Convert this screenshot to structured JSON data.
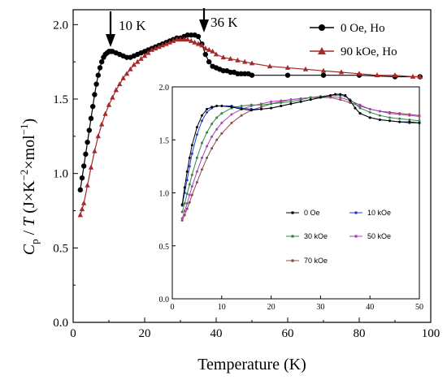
{
  "chart_data": [
    {
      "type": "line",
      "xlabel": "Temperature (K)",
      "ylabel": "C_p / T (J×K^-2×mol^-1)",
      "xlim": [
        0,
        100
      ],
      "ylim": [
        0.0,
        2.1
      ],
      "xticks": [
        "0",
        "20",
        "40",
        "60",
        "80",
        "100"
      ],
      "yticks": [
        "0.0",
        "0.5",
        "1.0",
        "1.5",
        "2.0"
      ],
      "legend_position": "top-right",
      "annotations": [
        {
          "text": "10 K",
          "x": 10,
          "y": 1.82
        },
        {
          "text": "36 K",
          "x": 36,
          "y": 1.93
        }
      ],
      "series": [
        {
          "name": "0 Oe, Ho",
          "color": "#000000",
          "marker": "circle",
          "x": [
            2,
            2.5,
            3,
            3.5,
            4,
            4.5,
            5,
            5.5,
            6,
            6.5,
            7,
            7.5,
            8,
            8.5,
            9,
            9.5,
            10,
            10.5,
            11,
            12,
            13,
            14,
            15,
            16,
            17,
            18,
            19,
            20,
            21,
            22,
            23,
            24,
            25,
            26,
            27,
            28,
            29,
            30,
            31,
            32,
            33,
            34,
            35,
            36,
            37,
            38,
            39,
            40,
            41,
            42,
            43,
            44,
            45,
            46,
            47,
            48,
            49,
            50,
            60,
            70,
            80,
            90,
            97
          ],
          "y": [
            0.89,
            0.97,
            1.05,
            1.13,
            1.21,
            1.29,
            1.37,
            1.45,
            1.53,
            1.6,
            1.66,
            1.71,
            1.75,
            1.78,
            1.8,
            1.81,
            1.82,
            1.82,
            1.82,
            1.81,
            1.8,
            1.79,
            1.78,
            1.78,
            1.79,
            1.8,
            1.81,
            1.82,
            1.83,
            1.84,
            1.85,
            1.86,
            1.87,
            1.88,
            1.89,
            1.9,
            1.91,
            1.91,
            1.92,
            1.93,
            1.93,
            1.93,
            1.92,
            1.87,
            1.8,
            1.75,
            1.72,
            1.71,
            1.7,
            1.69,
            1.69,
            1.68,
            1.68,
            1.67,
            1.67,
            1.67,
            1.67,
            1.66,
            1.66,
            1.66,
            1.66,
            1.65,
            1.65
          ]
        },
        {
          "name": "90 kOe, Ho",
          "color": "#a52a2a",
          "marker": "triangle",
          "x": [
            2,
            2.5,
            3,
            4,
            5,
            6,
            7,
            8,
            9,
            10,
            11,
            12,
            13,
            14,
            15,
            16,
            17,
            18,
            19,
            20,
            21,
            22,
            23,
            24,
            25,
            26,
            27,
            28,
            29,
            30,
            31,
            32,
            33,
            34,
            35,
            36,
            37,
            38,
            39,
            40,
            42,
            44,
            46,
            48,
            50,
            55,
            60,
            65,
            70,
            75,
            80,
            85,
            90,
            95,
            97
          ],
          "y": [
            0.72,
            0.76,
            0.8,
            0.92,
            1.04,
            1.15,
            1.25,
            1.33,
            1.4,
            1.46,
            1.51,
            1.56,
            1.6,
            1.64,
            1.67,
            1.7,
            1.73,
            1.75,
            1.77,
            1.79,
            1.81,
            1.83,
            1.84,
            1.85,
            1.86,
            1.87,
            1.88,
            1.89,
            1.9,
            1.9,
            1.9,
            1.9,
            1.89,
            1.88,
            1.87,
            1.86,
            1.84,
            1.83,
            1.82,
            1.8,
            1.78,
            1.77,
            1.76,
            1.75,
            1.74,
            1.72,
            1.71,
            1.7,
            1.69,
            1.68,
            1.67,
            1.66,
            1.66,
            1.65,
            1.65
          ]
        }
      ]
    },
    {
      "type": "line",
      "xlabel": "",
      "ylabel": "",
      "xlim": [
        0,
        50
      ],
      "ylim": [
        0.0,
        2.0
      ],
      "xticks": [
        "0",
        "10",
        "20",
        "30",
        "40",
        "50"
      ],
      "yticks": [
        "0.0",
        "0.5",
        "1.0",
        "1.5",
        "2.0"
      ],
      "legend_position": "lower-center",
      "series": [
        {
          "name": "0 Oe",
          "color": "#000000",
          "x": [
            2,
            2.5,
            3,
            3.5,
            4,
            5,
            6,
            7,
            8,
            9,
            10,
            12,
            14,
            16,
            18,
            20,
            22,
            24,
            26,
            28,
            30,
            32,
            33,
            34,
            35,
            36,
            37,
            38,
            40,
            42,
            44,
            46,
            48,
            50
          ],
          "y": [
            0.89,
            1.05,
            1.2,
            1.33,
            1.45,
            1.62,
            1.73,
            1.79,
            1.81,
            1.82,
            1.82,
            1.81,
            1.79,
            1.78,
            1.79,
            1.8,
            1.82,
            1.84,
            1.86,
            1.88,
            1.9,
            1.92,
            1.93,
            1.93,
            1.92,
            1.87,
            1.8,
            1.75,
            1.71,
            1.69,
            1.68,
            1.67,
            1.67,
            1.66
          ]
        },
        {
          "name": "10 kOe",
          "color": "#1f3fd1",
          "x": [
            2,
            2.5,
            3,
            3.5,
            4,
            5,
            6,
            7,
            8,
            9,
            10,
            12,
            14,
            16,
            18,
            20,
            22,
            24,
            26,
            28,
            30,
            32,
            33,
            34,
            35,
            36,
            37,
            38,
            40,
            42,
            44,
            46,
            48,
            50
          ],
          "y": [
            0.88,
            1.0,
            1.12,
            1.25,
            1.37,
            1.55,
            1.68,
            1.76,
            1.8,
            1.82,
            1.82,
            1.82,
            1.8,
            1.79,
            1.79,
            1.8,
            1.82,
            1.84,
            1.86,
            1.88,
            1.9,
            1.92,
            1.93,
            1.93,
            1.92,
            1.87,
            1.8,
            1.75,
            1.71,
            1.69,
            1.68,
            1.67,
            1.66,
            1.66
          ]
        },
        {
          "name": "30 kOe",
          "color": "#2e8b3e",
          "x": [
            2,
            2.5,
            3,
            3.5,
            4,
            5,
            6,
            7,
            8,
            9,
            10,
            12,
            14,
            16,
            18,
            20,
            22,
            24,
            26,
            28,
            30,
            32,
            34,
            35,
            36,
            37,
            38,
            40,
            42,
            44,
            46,
            48,
            50
          ],
          "y": [
            0.82,
            0.9,
            0.99,
            1.08,
            1.17,
            1.33,
            1.47,
            1.57,
            1.65,
            1.71,
            1.75,
            1.8,
            1.82,
            1.83,
            1.83,
            1.84,
            1.85,
            1.86,
            1.88,
            1.9,
            1.91,
            1.92,
            1.92,
            1.91,
            1.88,
            1.84,
            1.8,
            1.76,
            1.73,
            1.71,
            1.7,
            1.69,
            1.68
          ]
        },
        {
          "name": "50 kOe",
          "color": "#b040c0",
          "x": [
            2,
            2.5,
            3,
            3.5,
            4,
            5,
            6,
            7,
            8,
            9,
            10,
            12,
            14,
            16,
            18,
            20,
            22,
            24,
            26,
            28,
            30,
            32,
            34,
            36,
            38,
            40,
            42,
            44,
            46,
            48,
            50
          ],
          "y": [
            0.76,
            0.83,
            0.9,
            0.98,
            1.06,
            1.2,
            1.33,
            1.44,
            1.53,
            1.6,
            1.66,
            1.74,
            1.79,
            1.82,
            1.84,
            1.86,
            1.87,
            1.88,
            1.89,
            1.9,
            1.91,
            1.91,
            1.9,
            1.87,
            1.83,
            1.79,
            1.77,
            1.75,
            1.74,
            1.73,
            1.72
          ]
        },
        {
          "name": "70 kOe",
          "color": "#8b4a4a",
          "x": [
            2,
            2.5,
            3,
            3.5,
            4,
            5,
            6,
            7,
            8,
            9,
            10,
            12,
            14,
            16,
            18,
            20,
            22,
            24,
            26,
            28,
            30,
            32,
            34,
            36,
            38,
            40,
            42,
            44,
            46,
            48,
            50
          ],
          "y": [
            0.74,
            0.79,
            0.85,
            0.91,
            0.98,
            1.1,
            1.22,
            1.33,
            1.42,
            1.5,
            1.56,
            1.66,
            1.73,
            1.78,
            1.81,
            1.84,
            1.86,
            1.88,
            1.89,
            1.9,
            1.9,
            1.9,
            1.88,
            1.85,
            1.82,
            1.79,
            1.77,
            1.76,
            1.75,
            1.74,
            1.73
          ]
        }
      ]
    }
  ]
}
